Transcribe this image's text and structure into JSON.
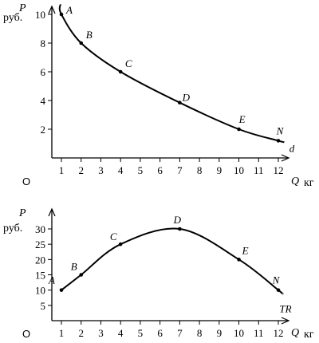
{
  "chart_data": [
    {
      "type": "line",
      "origin_label": "O",
      "ylabel": "P",
      "yunit": "руб.",
      "xlabel": "Q",
      "xunit": "кг",
      "curve_label": "d",
      "xlim": [
        0,
        12.6
      ],
      "ylim": [
        0,
        11
      ],
      "xticks": [
        1,
        2,
        3,
        4,
        5,
        6,
        7,
        8,
        9,
        10,
        11,
        12
      ],
      "yticks": [
        2,
        4,
        6,
        8,
        10
      ],
      "points": [
        {
          "label": "A",
          "x": 1,
          "y": 10
        },
        {
          "label": "B",
          "x": 2,
          "y": 8
        },
        {
          "label": "C",
          "x": 4,
          "y": 6
        },
        {
          "label": "D",
          "x": 7,
          "y": 3.85
        },
        {
          "label": "E",
          "x": 10,
          "y": 2
        },
        {
          "label": "N",
          "x": 12,
          "y": 1.2
        }
      ],
      "curve": [
        [
          0.95,
          10.7
        ],
        [
          1,
          10
        ],
        [
          2,
          8
        ],
        [
          4,
          6
        ],
        [
          7,
          3.85
        ],
        [
          10,
          2
        ],
        [
          12,
          1.2
        ],
        [
          12.3,
          1.1
        ]
      ]
    },
    {
      "type": "line",
      "origin_label": "O",
      "ylabel": "P",
      "yunit": "руб.",
      "xlabel": "Q",
      "xunit": "кг",
      "curve_label": "TR",
      "xlim": [
        0,
        12.6
      ],
      "ylim": [
        0,
        33
      ],
      "xticks": [
        1,
        2,
        3,
        4,
        5,
        6,
        7,
        8,
        9,
        10,
        11,
        12
      ],
      "yticks": [
        5,
        10,
        15,
        20,
        25,
        30
      ],
      "points": [
        {
          "label": "A",
          "x": 1,
          "y": 10
        },
        {
          "label": "B",
          "x": 2,
          "y": 15
        },
        {
          "label": "C",
          "x": 4,
          "y": 25
        },
        {
          "label": "D",
          "x": 7,
          "y": 30
        },
        {
          "label": "E",
          "x": 10,
          "y": 20
        },
        {
          "label": "N",
          "x": 12,
          "y": 10
        }
      ],
      "curve": [
        [
          1,
          10
        ],
        [
          2,
          15
        ],
        [
          4,
          25
        ],
        [
          7,
          30
        ],
        [
          10,
          20
        ],
        [
          12,
          10
        ],
        [
          12.2,
          8.8
        ]
      ]
    }
  ]
}
